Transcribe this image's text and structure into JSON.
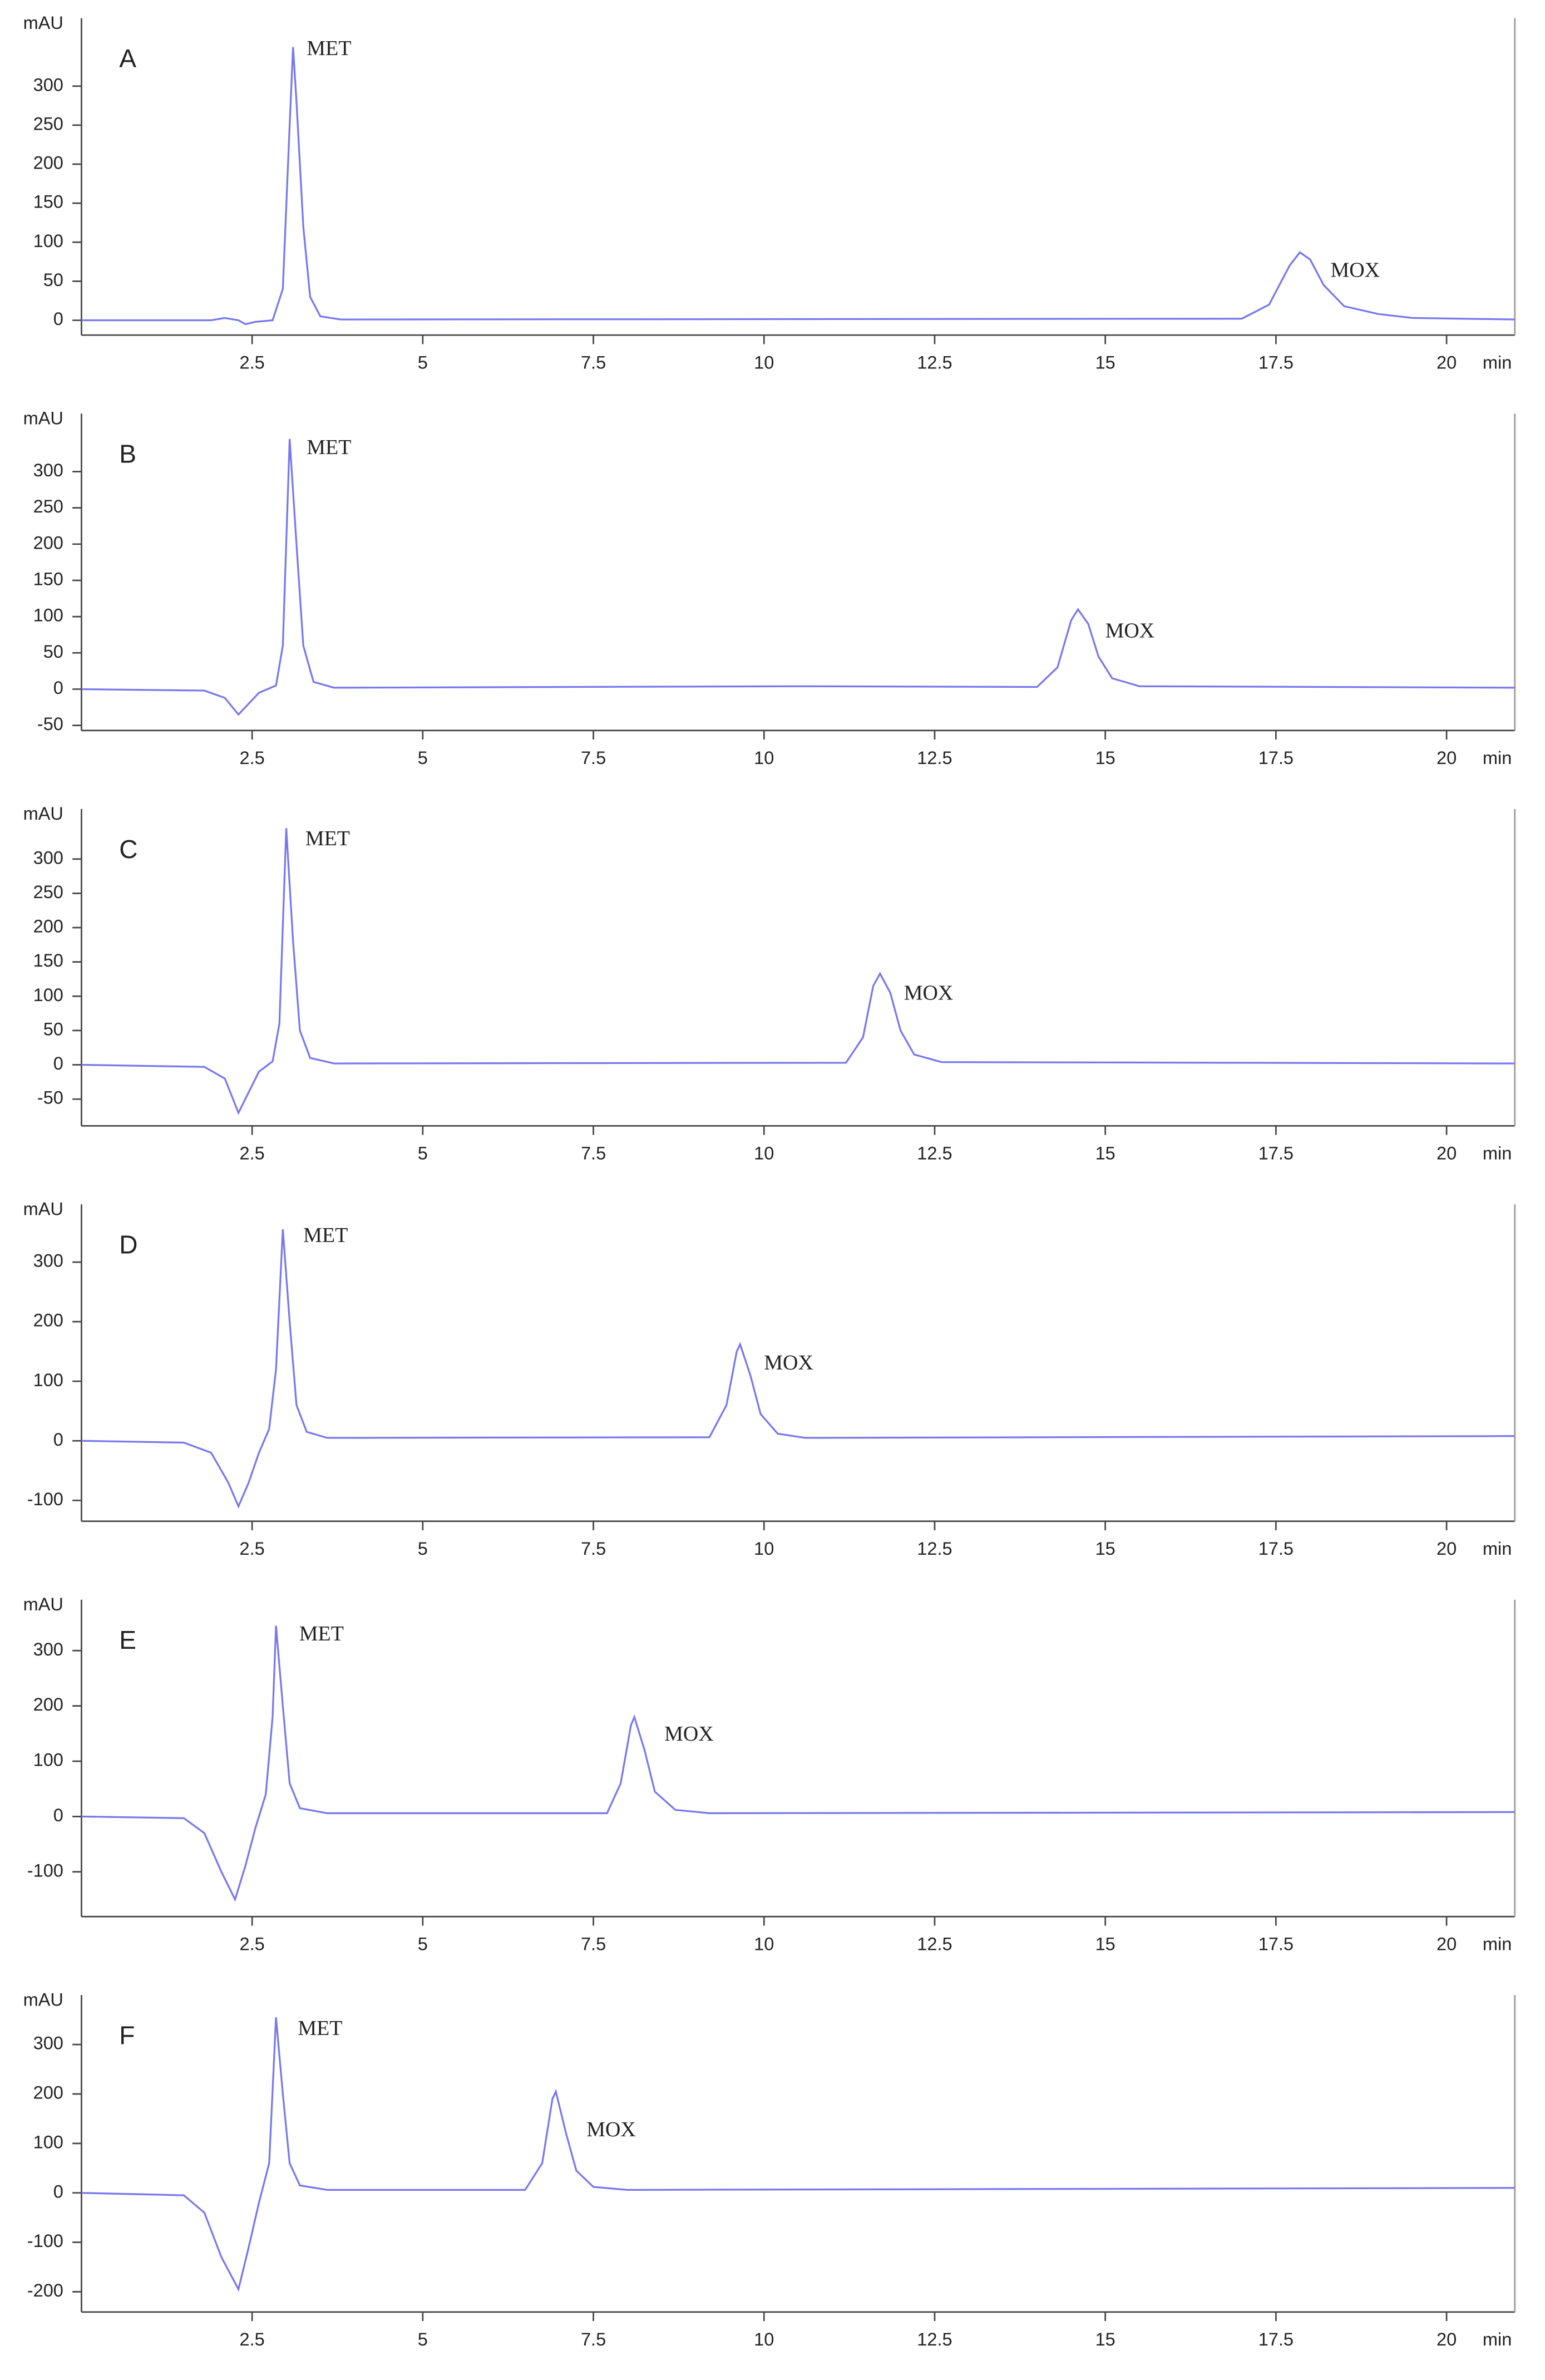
{
  "chart_data": [
    {
      "type": "line",
      "title": "A",
      "ylabel": "mAU",
      "xlabel": "min",
      "color": "#7878ee",
      "xlim": [
        0,
        21
      ],
      "xticks": [
        2.5,
        5,
        7.5,
        10,
        12.5,
        15,
        17.5,
        20
      ],
      "ylim": [
        -19,
        387
      ],
      "yticks": [
        0,
        50,
        100,
        150,
        200,
        250,
        300
      ],
      "x": [
        0,
        1.9,
        2.1,
        2.3,
        2.4,
        2.55,
        2.8,
        2.95,
        3.05,
        3.1,
        3.15,
        3.25,
        3.35,
        3.5,
        3.8,
        17,
        17.4,
        17.7,
        17.85,
        18.0,
        18.2,
        18.5,
        19,
        19.5,
        21
      ],
      "values": [
        0,
        0,
        3,
        0,
        -5,
        -2,
        0,
        40,
        250,
        350,
        280,
        120,
        30,
        5,
        1,
        2,
        20,
        70,
        87,
        78,
        45,
        18,
        8,
        3,
        1
      ],
      "annotations": [
        {
          "text": "MET",
          "x": 3.3,
          "y": 346
        },
        {
          "text": "MOX",
          "x": 18.3,
          "y": 62
        }
      ]
    },
    {
      "type": "line",
      "title": "B",
      "ylabel": "mAU",
      "xlabel": "min",
      "color": "#7878ee",
      "xlim": [
        0,
        21
      ],
      "xticks": [
        2.5,
        5,
        7.5,
        10,
        12.5,
        15,
        17.5,
        20
      ],
      "ylim": [
        -57,
        380
      ],
      "yticks": [
        -50,
        0,
        50,
        100,
        150,
        200,
        250,
        300
      ],
      "x": [
        0,
        1.8,
        2.1,
        2.3,
        2.45,
        2.6,
        2.85,
        2.95,
        3.05,
        3.15,
        3.25,
        3.4,
        3.7,
        10.5,
        14.0,
        14.3,
        14.5,
        14.6,
        14.75,
        14.9,
        15.1,
        15.5,
        21
      ],
      "values": [
        0,
        -2,
        -12,
        -35,
        -20,
        -5,
        5,
        60,
        345,
        200,
        60,
        10,
        2,
        4,
        3,
        30,
        95,
        110,
        90,
        45,
        15,
        4,
        2
      ],
      "annotations": [
        {
          "text": "MET",
          "x": 3.3,
          "y": 331
        },
        {
          "text": "MOX",
          "x": 15.0,
          "y": 78
        }
      ]
    },
    {
      "type": "line",
      "title": "C",
      "ylabel": "mAU",
      "xlabel": "min",
      "color": "#7878ee",
      "xlim": [
        0,
        21
      ],
      "xticks": [
        2.5,
        5,
        7.5,
        10,
        12.5,
        15,
        17.5,
        20
      ],
      "ylim": [
        -89,
        373
      ],
      "yticks": [
        -50,
        0,
        50,
        100,
        150,
        200,
        250,
        300
      ],
      "x": [
        0,
        1.8,
        2.1,
        2.3,
        2.45,
        2.6,
        2.8,
        2.9,
        3.0,
        3.1,
        3.2,
        3.35,
        3.7,
        11.2,
        11.45,
        11.6,
        11.7,
        11.85,
        12.0,
        12.2,
        12.6,
        21
      ],
      "values": [
        0,
        -3,
        -20,
        -70,
        -40,
        -10,
        5,
        60,
        345,
        180,
        50,
        10,
        2,
        3,
        40,
        115,
        133,
        105,
        50,
        15,
        4,
        2
      ],
      "annotations": [
        {
          "text": "MET",
          "x": 3.28,
          "y": 327
        },
        {
          "text": "MOX",
          "x": 12.05,
          "y": 102
        }
      ]
    },
    {
      "type": "line",
      "title": "D",
      "ylabel": "mAU",
      "xlabel": "min",
      "color": "#7878ee",
      "xlim": [
        0,
        21
      ],
      "xticks": [
        2.5,
        5,
        7.5,
        10,
        12.5,
        15,
        17.5,
        20
      ],
      "ylim": [
        -135,
        397
      ],
      "yticks": [
        -100,
        0,
        100,
        200,
        300
      ],
      "x": [
        0,
        1.5,
        1.9,
        2.15,
        2.3,
        2.45,
        2.6,
        2.75,
        2.85,
        2.95,
        3.05,
        3.15,
        3.3,
        3.6,
        9.2,
        9.45,
        9.6,
        9.65,
        9.8,
        9.95,
        10.2,
        10.6,
        21
      ],
      "values": [
        0,
        -3,
        -20,
        -70,
        -110,
        -70,
        -20,
        20,
        120,
        355,
        200,
        60,
        15,
        5,
        6,
        60,
        150,
        162,
        110,
        45,
        12,
        5,
        8
      ],
      "annotations": [
        {
          "text": "MET",
          "x": 3.25,
          "y": 342
        },
        {
          "text": "MOX",
          "x": 10.0,
          "y": 128
        }
      ]
    },
    {
      "type": "line",
      "title": "E",
      "ylabel": "mAU",
      "xlabel": "min",
      "color": "#7878ee",
      "xlim": [
        0,
        21
      ],
      "xticks": [
        2.5,
        5,
        7.5,
        10,
        12.5,
        15,
        17.5,
        20
      ],
      "ylim": [
        -181,
        392
      ],
      "yticks": [
        -100,
        0,
        100,
        200,
        300
      ],
      "x": [
        0,
        1.5,
        1.8,
        2.05,
        2.25,
        2.4,
        2.55,
        2.7,
        2.8,
        2.85,
        2.95,
        3.05,
        3.2,
        3.6,
        7.7,
        7.9,
        8.05,
        8.1,
        8.25,
        8.4,
        8.7,
        9.2,
        21
      ],
      "values": [
        0,
        -3,
        -30,
        -100,
        -150,
        -90,
        -20,
        40,
        180,
        345,
        200,
        60,
        15,
        6,
        6,
        60,
        165,
        180,
        120,
        45,
        12,
        6,
        8
      ],
      "annotations": [
        {
          "text": "MET",
          "x": 3.19,
          "y": 327
        },
        {
          "text": "MOX",
          "x": 8.54,
          "y": 146
        }
      ]
    },
    {
      "type": "line",
      "title": "F",
      "ylabel": "mAU",
      "xlabel": "min",
      "color": "#7878ee",
      "xlim": [
        0,
        21
      ],
      "xticks": [
        2.5,
        5,
        7.5,
        10,
        12.5,
        15,
        17.5,
        20
      ],
      "ylim": [
        -241,
        400
      ],
      "yticks": [
        -200,
        -100,
        0,
        100,
        200,
        300
      ],
      "x": [
        0,
        1.5,
        1.8,
        2.05,
        2.3,
        2.45,
        2.6,
        2.75,
        2.85,
        2.95,
        3.05,
        3.2,
        3.6,
        6.5,
        6.75,
        6.9,
        6.95,
        7.1,
        7.25,
        7.5,
        8,
        21
      ],
      "values": [
        0,
        -5,
        -40,
        -130,
        -195,
        -110,
        -20,
        60,
        355,
        200,
        60,
        15,
        6,
        6,
        60,
        190,
        205,
        120,
        45,
        12,
        6,
        10
      ],
      "annotations": [
        {
          "text": "MET",
          "x": 3.17,
          "y": 329
        },
        {
          "text": "MOX",
          "x": 7.4,
          "y": 124
        }
      ]
    }
  ]
}
